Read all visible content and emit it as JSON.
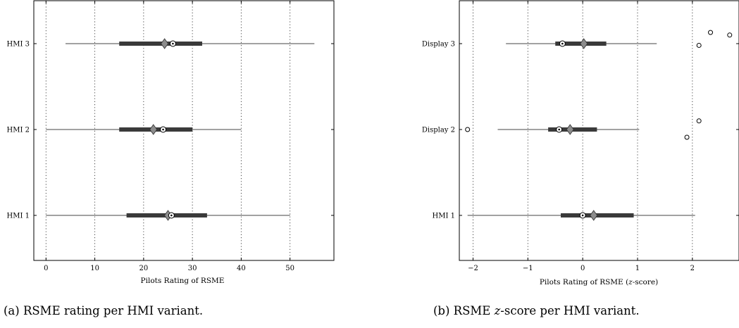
{
  "chart_data": [
    {
      "type": "boxplot",
      "orientation": "horizontal",
      "title": "",
      "xlabel": "Pilots Rating of RSME",
      "xlim": [
        -2.5,
        59
      ],
      "xticks": [
        0,
        10,
        20,
        30,
        40,
        50
      ],
      "xtick_labels": [
        "0",
        "10",
        "20",
        "30",
        "40",
        "50"
      ],
      "grid": "vertical dotted at x ticks",
      "categories": [
        "HMI 3",
        "HMI 2",
        "HMI 1"
      ],
      "boxes": [
        {
          "category": "HMI 3",
          "whisker_low": 4,
          "q1": 15,
          "median": 26,
          "mean": 24.3,
          "q3": 32,
          "whisker_high": 55,
          "outliers": []
        },
        {
          "category": "HMI 2",
          "whisker_low": 0,
          "q1": 15,
          "median": 24,
          "mean": 22,
          "q3": 30,
          "whisker_high": 40,
          "outliers": []
        },
        {
          "category": "HMI 1",
          "whisker_low": 0,
          "q1": 16.5,
          "median": 25.7,
          "mean": 25,
          "q3": 33,
          "whisker_high": 50,
          "outliers": []
        }
      ],
      "caption": "(a) RSME rating per HMI variant."
    },
    {
      "type": "boxplot",
      "orientation": "horizontal",
      "title": "",
      "xlabel_prefix": "Pilots Rating of RSME (",
      "xlabel_var": "z",
      "xlabel_suffix": "-score)",
      "xlim": [
        -2.25,
        2.85
      ],
      "xticks": [
        -2,
        -1,
        0,
        1,
        2
      ],
      "xtick_labels": [
        "−2",
        "−1",
        "0",
        "1",
        "2"
      ],
      "grid": "vertical dotted at x ticks",
      "categories": [
        "Display 3",
        "Display 2",
        "HMI 1"
      ],
      "boxes": [
        {
          "category": "Display 3",
          "whisker_low": -1.4,
          "q1": -0.5,
          "median": -0.37,
          "mean": 0.02,
          "q3": 0.43,
          "whisker_high": 1.35,
          "outliers": [
            [
              2.12,
              0.02
            ],
            [
              2.33,
              -0.13
            ],
            [
              2.68,
              -0.1
            ]
          ]
        },
        {
          "category": "Display 2",
          "whisker_low": -1.55,
          "q1": -0.63,
          "median": -0.43,
          "mean": -0.23,
          "q3": 0.26,
          "whisker_high": 1.03,
          "outliers": [
            [
              -2.1,
              0
            ],
            [
              1.9,
              0.09
            ],
            [
              2.12,
              -0.1
            ]
          ]
        },
        {
          "category": "HMI 1",
          "whisker_low": -2.1,
          "q1": -0.4,
          "median": 0.0,
          "mean": 0.2,
          "q3": 0.93,
          "whisker_high": 2.05,
          "outliers": []
        }
      ],
      "caption_prefix": "(b) RSME ",
      "caption_var": "z",
      "caption_suffix": "-score per HMI variant."
    }
  ]
}
